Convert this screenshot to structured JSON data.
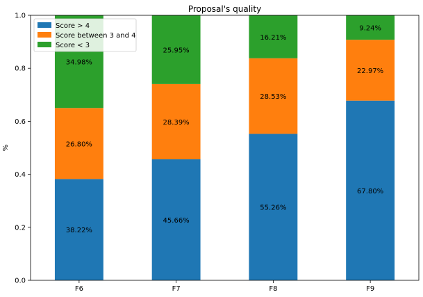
{
  "chart_data": {
    "type": "bar",
    "stacked": true,
    "title": "Proposal's quality",
    "xlabel": "",
    "ylabel": "%",
    "ylim": [
      0,
      1.0
    ],
    "yticks": [
      "0.0",
      "0.2",
      "0.4",
      "0.6",
      "0.8",
      "1.0"
    ],
    "categories": [
      "F6",
      "F7",
      "F8",
      "F9"
    ],
    "legend_position": "top-left",
    "series": [
      {
        "name": "Score > 4",
        "color": "#1f77b4",
        "values": [
          0.3822,
          0.4566,
          0.5526,
          0.678
        ],
        "labels": [
          "38.22%",
          "45.66%",
          "55.26%",
          "67.80%"
        ]
      },
      {
        "name": "Score between 3 and 4",
        "color": "#ff7f0e",
        "values": [
          0.268,
          0.2839,
          0.2853,
          0.2297
        ],
        "labels": [
          "26.80%",
          "28.39%",
          "28.53%",
          "22.97%"
        ]
      },
      {
        "name": "Score < 3",
        "color": "#2ca02c",
        "values": [
          0.3498,
          0.2595,
          0.1621,
          0.0924
        ],
        "labels": [
          "34.98%",
          "25.95%",
          "16.21%",
          "9.24%"
        ]
      }
    ]
  }
}
